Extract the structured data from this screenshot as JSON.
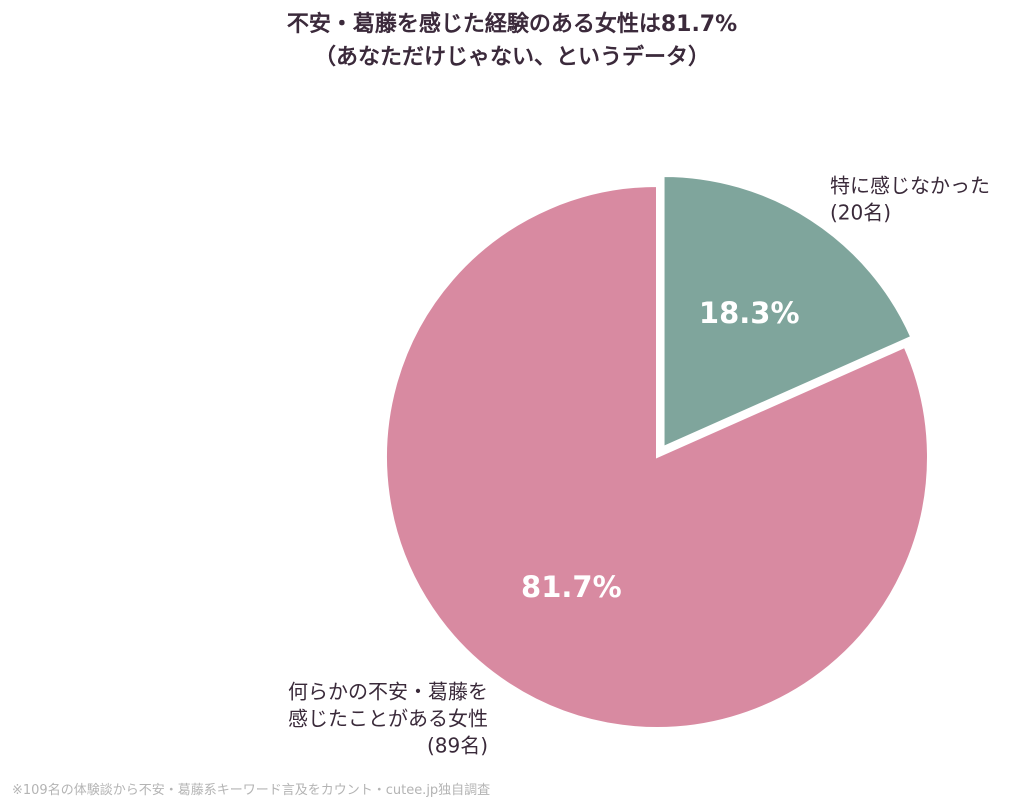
{
  "chart_data": {
    "type": "pie",
    "title": "不安・葛藤を感じた経験のある女性は81.7%",
    "subtitle": "（あなただけじゃない、というデータ）",
    "slices": [
      {
        "label_lines": [
          "特に感じなかった",
          "(20名)"
        ],
        "count": 20,
        "percent": 18.3,
        "percent_label": "18.3%",
        "color": "#7fa59c",
        "exploded": true
      },
      {
        "label_lines": [
          "何らかの不安・葛藤を",
          "感じたことがある女性",
          "(89名)"
        ],
        "count": 89,
        "percent": 81.7,
        "percent_label": "81.7%",
        "color": "#d88aa1",
        "exploded": false
      }
    ],
    "start_angle_deg": 0,
    "direction": "clockwise",
    "label_color": "#ffffff"
  },
  "footnote": "※109名の体験談から不安・葛藤系キーワード言及をカウント・cutee.jp独自調査"
}
